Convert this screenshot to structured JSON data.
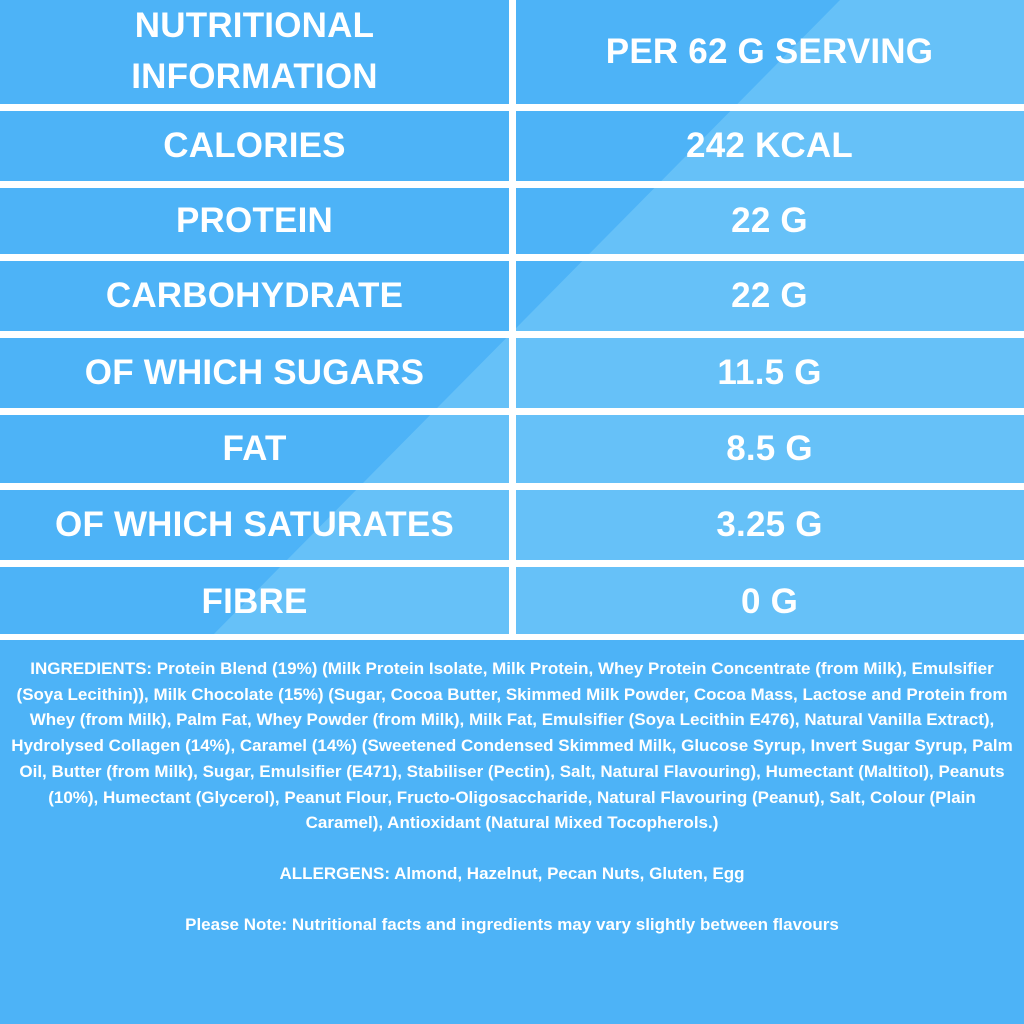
{
  "colors": {
    "background": "#4db3f7",
    "highlight": "#66c1f8",
    "divider": "#ffffff",
    "text": "#ffffff"
  },
  "table": {
    "header": {
      "left": "NUTRITIONAL INFORMATION",
      "right": "PER 62 G SERVING"
    },
    "rows": [
      {
        "label": "CALORIES",
        "value": "242 KCAL"
      },
      {
        "label": "PROTEIN",
        "value": "22 G"
      },
      {
        "label": "CARBOHYDRATE",
        "value": "22 G"
      },
      {
        "label": "OF WHICH SUGARS",
        "value": "11.5 G"
      },
      {
        "label": "FAT",
        "value": "8.5 G"
      },
      {
        "label": "OF WHICH SATURATES",
        "value": "3.25 G"
      },
      {
        "label": "FIBRE",
        "value": "0 G"
      }
    ]
  },
  "ingredients": "INGREDIENTS: Protein Blend (19%) (Milk Protein Isolate, Milk Protein, Whey Protein Concentrate (from Milk), Emulsifier (Soya Lecithin)), Milk Chocolate (15%) (Sugar, Cocoa Butter, Skimmed Milk Powder, Cocoa Mass, Lactose and Protein from Whey (from Milk), Palm Fat, Whey Powder (from Milk), Milk Fat, Emulsifier (Soya Lecithin E476), Natural Vanilla Extract), Hydrolysed Collagen (14%), Caramel (14%) (Sweetened Condensed Skimmed Milk, Glucose Syrup, Invert Sugar Syrup, Palm Oil, Butter (from Milk), Sugar, Emulsifier (E471), Stabiliser (Pectin), Salt, Natural Flavouring), Humectant (Maltitol), Peanuts (10%), Humectant (Glycerol), Peanut Flour, Fructo-Oligosaccharide, Natural Flavouring (Peanut), Salt, Colour (Plain Caramel), Antioxidant (Natural Mixed Tocopherols.)",
  "allergens": "ALLERGENS: Almond, Hazelnut, Pecan Nuts, Gluten, Egg",
  "note": "Please Note: Nutritional facts and ingredients may vary slightly between flavours"
}
